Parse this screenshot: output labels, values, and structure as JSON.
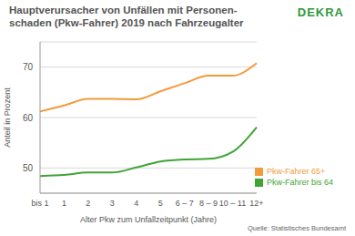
{
  "chart_data": {
    "type": "line",
    "title": "Hauptverursacher von Unfällen mit Personen-\nschaden (Pkw-Fahrer) 2019 nach Fahrzeugalter",
    "logo": "DEKRA",
    "source": "Quelle: Statistisches Bundesamt",
    "x_label": "Alter Pkw zum Unfallzeitpunkt (Jahre)",
    "y_label": "Anteil in Prozent",
    "categories": [
      "bis 1",
      "1",
      "2",
      "3",
      "4",
      "5",
      "6 – 7",
      "8 – 9",
      "10 – 11",
      "12+"
    ],
    "series": [
      {
        "name": "Pkw-Fahrer 65+",
        "color": "#f39a3a",
        "values": [
          61.2,
          62.4,
          63.7,
          63.7,
          63.6,
          65.2,
          66.8,
          68.3,
          68.3,
          70.8
        ]
      },
      {
        "name": "Pkw-Fahrer bis 64",
        "color": "#3fa534",
        "values": [
          48.4,
          48.6,
          49.1,
          49.1,
          50.1,
          51.3,
          51.7,
          51.8,
          53.2,
          58.1
        ]
      }
    ],
    "ylim": [
      45,
      75
    ],
    "yticks": [
      50,
      60,
      70
    ],
    "grid": true,
    "legend": "lower right"
  }
}
